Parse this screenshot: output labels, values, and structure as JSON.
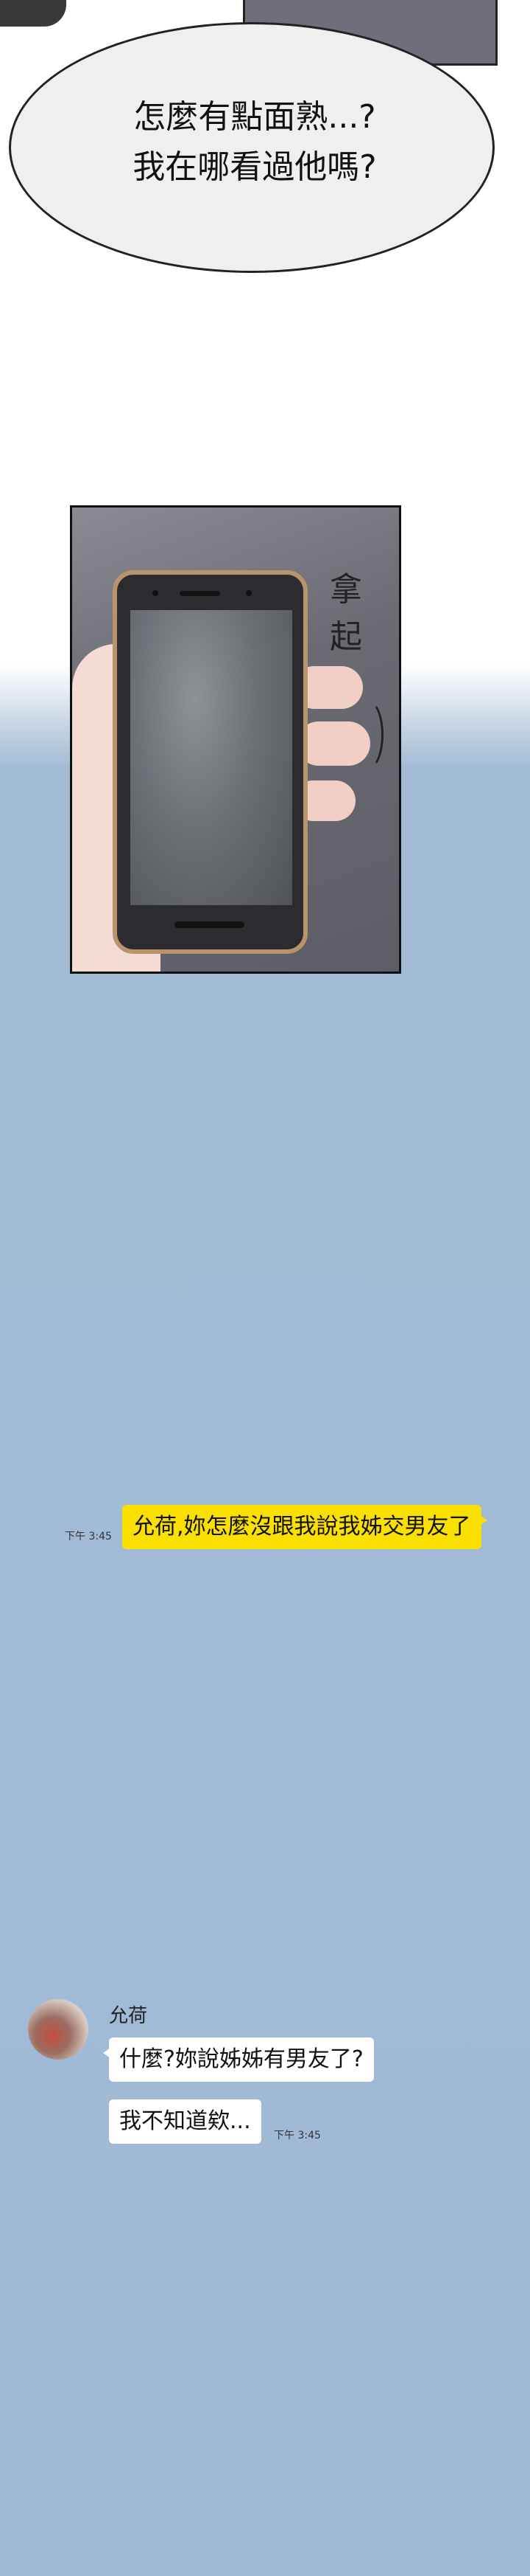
{
  "bubble": {
    "line1": "怎麼有點面熟...?",
    "line2": "我在哪看過他嗎?"
  },
  "sfx": "拿起",
  "chat": {
    "outgoing": {
      "text": "允荷,妳怎麼沒跟我說我姊交男友了",
      "time": "下午 3:45"
    },
    "sender_name": "允荷",
    "incoming": [
      {
        "text": "什麼?妳說姊姊有男友了?"
      },
      {
        "text": "我不知道欸..."
      }
    ],
    "incoming_time": "下午 3:45"
  },
  "colors": {
    "my_bubble": "#f9e000",
    "their_bubble": "#ffffff",
    "chat_bg": "#9fbad6"
  }
}
